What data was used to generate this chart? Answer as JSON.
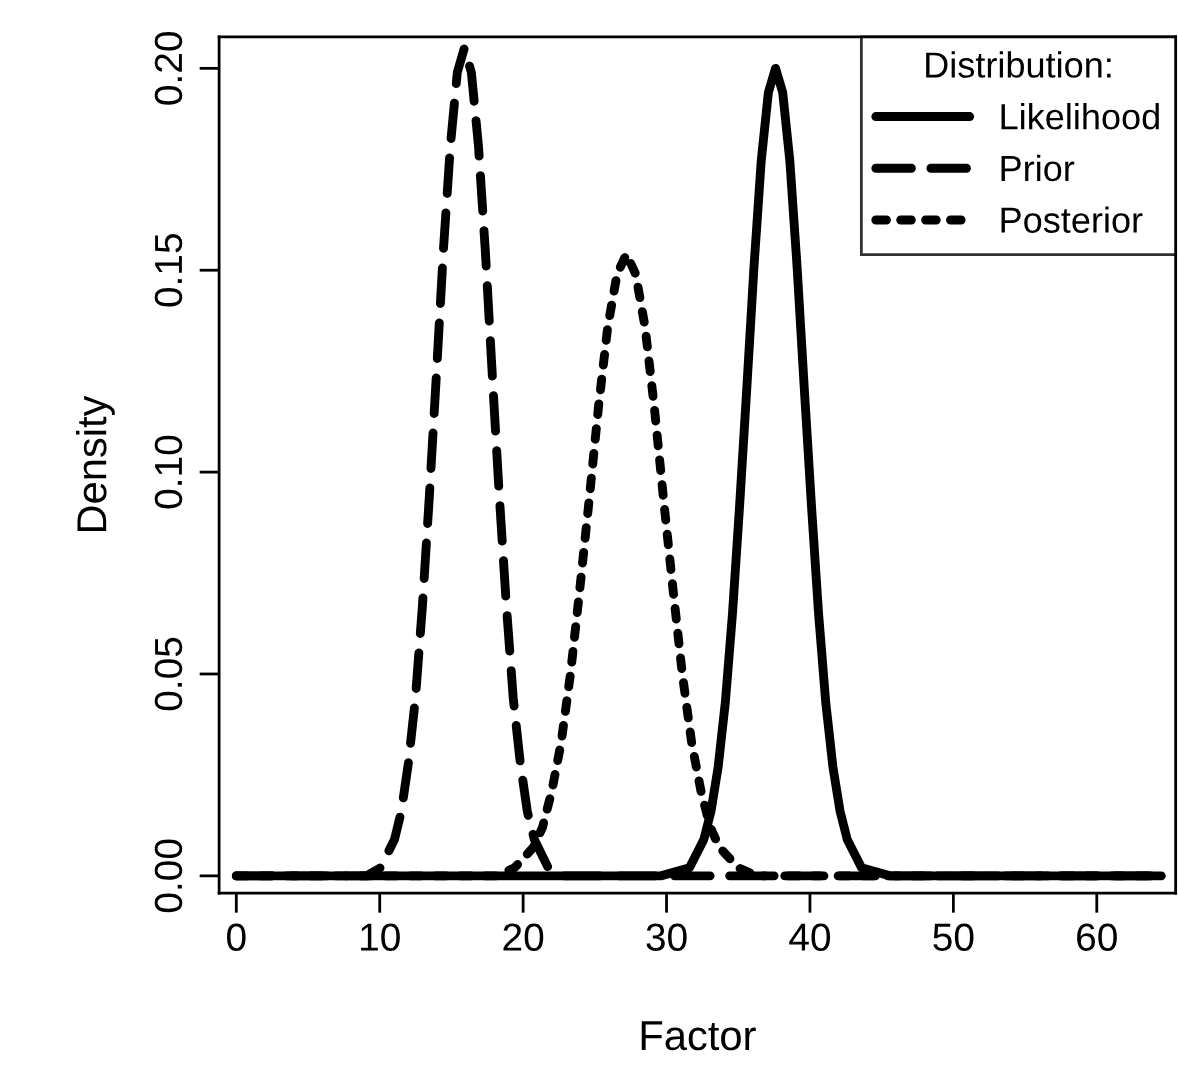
{
  "chart_data": {
    "type": "line",
    "xlabel": "Factor",
    "ylabel": "Density",
    "legend_title": "Distribution:",
    "legend": "top right",
    "xlim": [
      -1.2,
      65.5
    ],
    "xticks": [
      0,
      10,
      20,
      30,
      40,
      50,
      60
    ],
    "ylim": [
      -0.0043,
      0.2078
    ],
    "yticks": [
      {
        "value": 0,
        "label": "0.00"
      },
      {
        "value": 0.05,
        "label": "0.05"
      },
      {
        "value": 0.1,
        "label": "0.10"
      },
      {
        "value": 0.15,
        "label": "0.15"
      },
      {
        "value": 0.2,
        "label": "0.20"
      }
    ],
    "series": [
      {
        "name": "Likelihood",
        "color": "#000000",
        "line_style": "solid",
        "x": [
          0,
          29.6,
          31.6,
          32.6,
          33.1,
          33.6,
          34.1,
          34.6,
          35.1,
          35.6,
          36.1,
          36.6,
          37.1,
          37.6,
          38.1,
          38.6,
          39.1,
          39.6,
          40.1,
          40.6,
          41.1,
          41.6,
          42.1,
          42.6,
          43.6,
          45.6,
          64.5
        ],
        "values": [
          0,
          0,
          0.002,
          0.009,
          0.016,
          0.027,
          0.043,
          0.065,
          0.092,
          0.121,
          0.151,
          0.177,
          0.194,
          0.2,
          0.194,
          0.177,
          0.151,
          0.121,
          0.092,
          0.065,
          0.043,
          0.027,
          0.016,
          0.009,
          0.002,
          0,
          0
        ]
      },
      {
        "name": "Prior",
        "color": "#000000",
        "line_style": "dashed",
        "x": [
          0,
          8.1,
          9.08,
          10.05,
          11.03,
          11.51,
          12.0,
          12.49,
          12.98,
          13.46,
          13.95,
          14.44,
          14.93,
          15.41,
          15.9,
          16.39,
          16.88,
          17.36,
          17.85,
          18.34,
          18.83,
          19.31,
          19.8,
          20.29,
          20.78,
          21.75,
          22.73,
          23.7,
          64.5
        ],
        "values": [
          0,
          0,
          0,
          0.002,
          0.009,
          0.016,
          0.028,
          0.044,
          0.067,
          0.094,
          0.124,
          0.155,
          0.181,
          0.199,
          0.205,
          0.199,
          0.181,
          0.155,
          0.124,
          0.094,
          0.067,
          0.044,
          0.028,
          0.016,
          0.009,
          0.002,
          0,
          0,
          0
        ]
      },
      {
        "name": "Posterior",
        "color": "#000000",
        "line_style": "dotted",
        "x": [
          0,
          16.8,
          18.1,
          19.4,
          20.7,
          21.35,
          22.0,
          22.65,
          23.3,
          23.95,
          24.6,
          25.25,
          25.9,
          26.55,
          27.2,
          27.85,
          28.5,
          29.15,
          29.8,
          30.45,
          31.1,
          31.75,
          32.4,
          33.05,
          33.7,
          35.0,
          36.3,
          37.6,
          64.5
        ],
        "values": [
          0,
          0,
          0,
          0.002,
          0.007,
          0.012,
          0.021,
          0.033,
          0.05,
          0.071,
          0.093,
          0.116,
          0.136,
          0.149,
          0.154,
          0.149,
          0.136,
          0.116,
          0.093,
          0.071,
          0.05,
          0.033,
          0.021,
          0.012,
          0.007,
          0.002,
          0,
          0,
          0
        ]
      }
    ]
  }
}
